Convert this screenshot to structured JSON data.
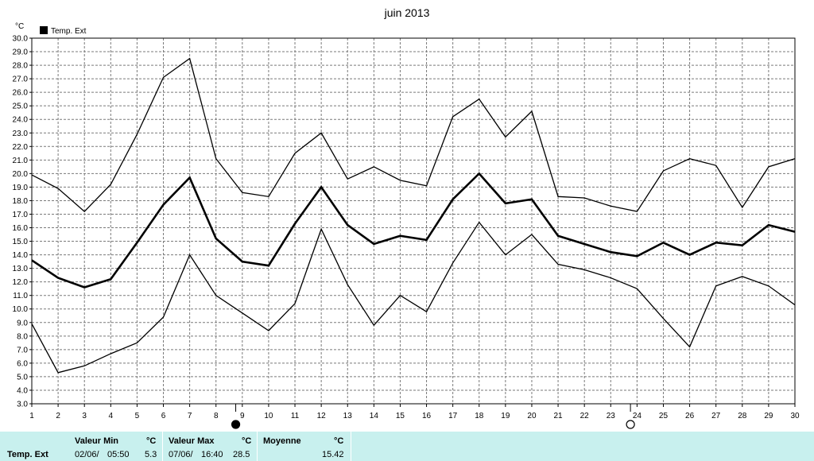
{
  "chart_data": {
    "type": "line",
    "title": "juin 2013",
    "unit": "°C",
    "legend": "Temp. Ext",
    "x": [
      1,
      2,
      3,
      4,
      5,
      6,
      7,
      8,
      9,
      10,
      11,
      12,
      13,
      14,
      15,
      16,
      17,
      18,
      19,
      20,
      21,
      22,
      23,
      24,
      25,
      26,
      27,
      28,
      29,
      30
    ],
    "ylim": [
      3.0,
      30.0
    ],
    "ytick_step": 1.0,
    "grid": true,
    "series": [
      {
        "role": "max",
        "values": [
          19.9,
          18.9,
          17.2,
          19.2,
          22.9,
          27.1,
          28.5,
          21.1,
          18.6,
          18.3,
          21.5,
          23.0,
          19.6,
          20.5,
          19.5,
          19.1,
          24.2,
          25.5,
          22.7,
          24.6,
          18.3,
          18.2,
          17.6,
          17.2,
          20.2,
          21.1,
          20.6,
          17.5,
          20.5,
          21.1
        ]
      },
      {
        "role": "avg",
        "values": [
          13.6,
          12.3,
          11.6,
          12.2,
          14.9,
          17.7,
          19.7,
          15.2,
          13.5,
          13.2,
          16.3,
          19.0,
          16.2,
          14.8,
          15.4,
          15.1,
          18.1,
          20.0,
          17.8,
          18.1,
          15.4,
          14.8,
          14.2,
          13.9,
          14.9,
          14.0,
          14.9,
          14.7,
          16.2,
          15.7
        ]
      },
      {
        "role": "min",
        "values": [
          8.9,
          5.3,
          5.8,
          6.7,
          7.5,
          9.4,
          14.0,
          11.0,
          9.7,
          8.4,
          10.4,
          15.9,
          11.8,
          8.8,
          11.0,
          9.8,
          13.4,
          16.4,
          14.0,
          15.5,
          13.3,
          12.9,
          12.3,
          11.5,
          9.3,
          7.2,
          11.7,
          12.4,
          11.7,
          10.3
        ]
      }
    ],
    "moon_markers": [
      {
        "day": 8.75,
        "phase": "new-moon"
      },
      {
        "day": 23.75,
        "phase": "full-moon"
      }
    ]
  },
  "stats": {
    "row_label": "Temp. Ext",
    "min": {
      "header": "Valeur Min",
      "unit": "°C",
      "date": "02/06/",
      "time": "05:50",
      "value": "5.3"
    },
    "max": {
      "header": "Valeur Max",
      "unit": "°C",
      "date": "07/06/",
      "time": "16:40",
      "value": "28.5"
    },
    "avg": {
      "header": "Moyenne",
      "unit": "°C",
      "value": "15.42"
    }
  }
}
